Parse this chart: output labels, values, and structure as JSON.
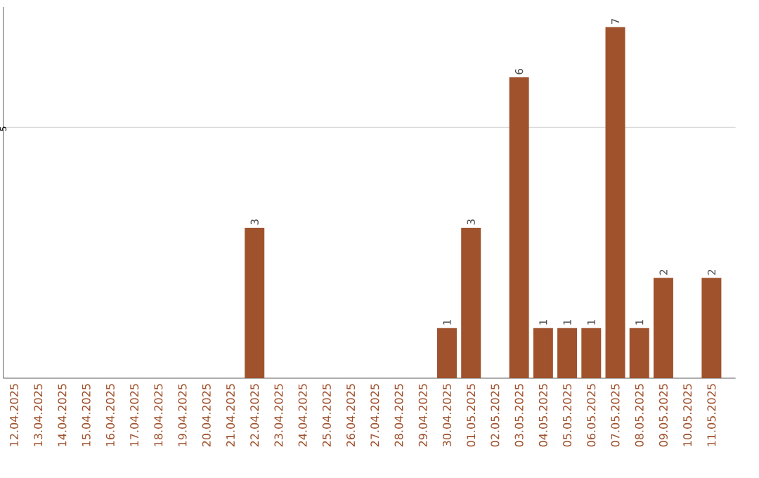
{
  "chart_data": {
    "type": "bar",
    "categories": [
      "12.04.2025",
      "13.04.2025",
      "14.04.2025",
      "15.04.2025",
      "16.04.2025",
      "17.04.2025",
      "18.04.2025",
      "19.04.2025",
      "20.04.2025",
      "21.04.2025",
      "22.04.2025",
      "23.04.2025",
      "24.04.2025",
      "25.04.2025",
      "26.04.2025",
      "27.04.2025",
      "28.04.2025",
      "29.04.2025",
      "30.04.2025",
      "01.05.2025",
      "02.05.2025",
      "03.05.2025",
      "04.05.2025",
      "05.05.2025",
      "06.05.2025",
      "07.05.2025",
      "08.05.2025",
      "09.05.2025",
      "10.05.2025",
      "11.05.2025"
    ],
    "values": [
      0,
      0,
      0,
      0,
      0,
      0,
      0,
      0,
      0,
      0,
      3,
      0,
      0,
      0,
      0,
      0,
      0,
      0,
      1,
      3,
      0,
      6,
      1,
      1,
      1,
      7,
      1,
      2,
      0,
      2
    ],
    "value_labels": [
      null,
      null,
      null,
      null,
      null,
      null,
      null,
      null,
      null,
      null,
      "3",
      null,
      null,
      null,
      null,
      null,
      null,
      null,
      "1",
      "3",
      null,
      "6",
      "1",
      "1",
      "1",
      "7",
      "1",
      "2",
      null,
      "2"
    ],
    "color": "#a0522d",
    "ylim": [
      0,
      7.4
    ],
    "yticks": [
      5
    ],
    "grid": "y"
  }
}
